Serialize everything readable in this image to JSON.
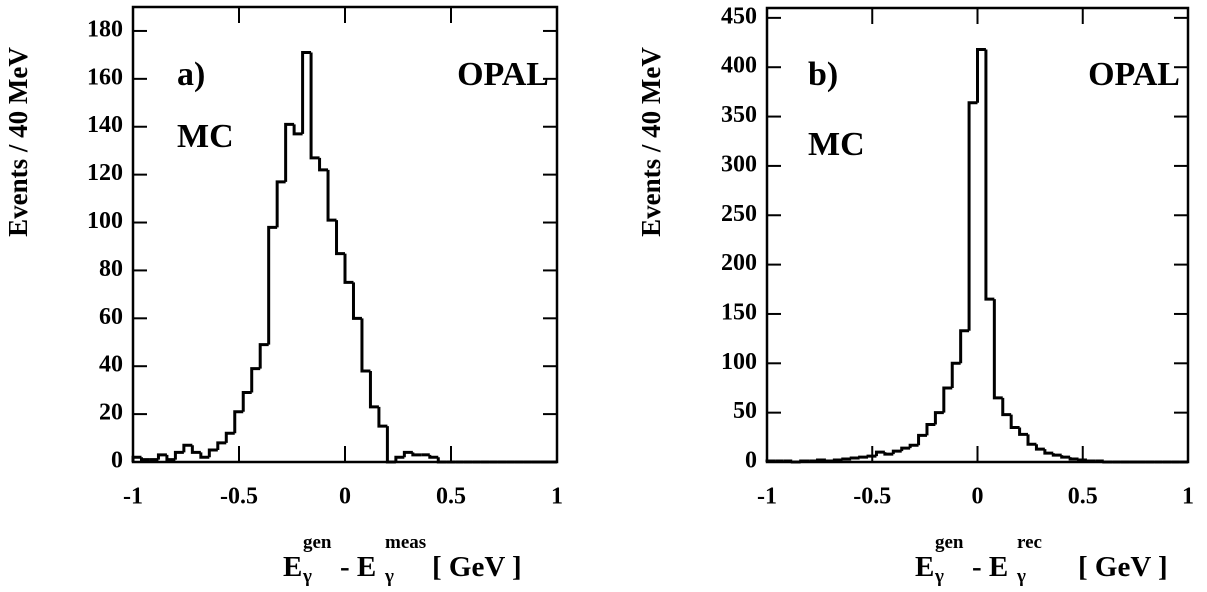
{
  "chart_data": [
    {
      "type": "histogram",
      "panel_label": "a)",
      "experiment": "OPAL",
      "sample": "MC",
      "ylabel": "Events / 40 MeV",
      "xlabel": [
        "E",
        "gen",
        "γ",
        "- E",
        "meas",
        "γ",
        "[ GeV ]"
      ],
      "bins": [
        -1,
        -0.96,
        -0.92,
        -0.88,
        -0.84,
        -0.8,
        -0.76,
        -0.72,
        -0.68,
        -0.64,
        -0.6,
        -0.56,
        -0.52,
        -0.48,
        -0.44,
        -0.4,
        -0.36,
        -0.32,
        -0.28,
        -0.24,
        -0.2,
        -0.16,
        -0.12,
        -0.08,
        -0.04,
        0,
        0.04,
        0.08,
        0.12,
        0.16,
        0.2,
        0.24,
        0.28,
        0.32,
        0.36,
        0.4,
        0.44,
        0.48,
        0.52,
        0.56,
        0.6,
        0.64,
        0.68,
        0.72,
        0.76,
        0.8,
        0.84,
        0.88,
        0.92,
        0.96,
        1
      ],
      "values": [
        2,
        1,
        1,
        3,
        1,
        4,
        7,
        4,
        2,
        5,
        8,
        12,
        21,
        29,
        39,
        49,
        98,
        117,
        141,
        137,
        171,
        127,
        122,
        101,
        87,
        75,
        60,
        38,
        23,
        15,
        0,
        2,
        4,
        3,
        3,
        2,
        0,
        0,
        0,
        0,
        0,
        0,
        0,
        0,
        0,
        0,
        0,
        0,
        0,
        0
      ],
      "color": "#000000",
      "xlim": [
        -1,
        1
      ],
      "xticks": [
        -1,
        -0.5,
        0,
        0.5,
        1
      ],
      "ylim": [
        0,
        190
      ],
      "yticks": [
        0,
        20,
        40,
        60,
        80,
        100,
        120,
        140,
        160,
        180
      ]
    },
    {
      "type": "histogram",
      "panel_label": "b)",
      "experiment": "OPAL",
      "sample": "MC",
      "ylabel": "Events / 40 MeV",
      "xlabel": [
        "E",
        "gen",
        "γ",
        "- E",
        "rec",
        "γ",
        "[ GeV ]"
      ],
      "bins": [
        -1,
        -0.96,
        -0.92,
        -0.88,
        -0.84,
        -0.8,
        -0.76,
        -0.72,
        -0.68,
        -0.64,
        -0.6,
        -0.56,
        -0.52,
        -0.48,
        -0.44,
        -0.4,
        -0.36,
        -0.32,
        -0.28,
        -0.24,
        -0.2,
        -0.16,
        -0.12,
        -0.08,
        -0.04,
        0,
        0.04,
        0.08,
        0.12,
        0.16,
        0.2,
        0.24,
        0.28,
        0.32,
        0.36,
        0.4,
        0.44,
        0.48,
        0.52,
        0.56,
        0.6,
        0.64,
        0.68,
        0.72,
        0.76,
        0.8,
        0.84,
        0.88,
        0.92,
        0.96,
        1
      ],
      "values": [
        1,
        1,
        1,
        0,
        1,
        1,
        2,
        1,
        2,
        3,
        4,
        5,
        6,
        10,
        8,
        11,
        14,
        17,
        27,
        38,
        50,
        75,
        100,
        133,
        364,
        418,
        165,
        65,
        48,
        35,
        28,
        18,
        13,
        9,
        7,
        5,
        3,
        2,
        1,
        1,
        0,
        0,
        0,
        0,
        0,
        0,
        0,
        0,
        0,
        0
      ],
      "color": "#000000",
      "xlim": [
        -1,
        1
      ],
      "xticks": [
        -1,
        -0.5,
        0,
        0.5,
        1
      ],
      "ylim": [
        0,
        460
      ],
      "yticks": [
        0,
        50,
        100,
        150,
        200,
        250,
        300,
        350,
        400,
        450
      ]
    }
  ]
}
